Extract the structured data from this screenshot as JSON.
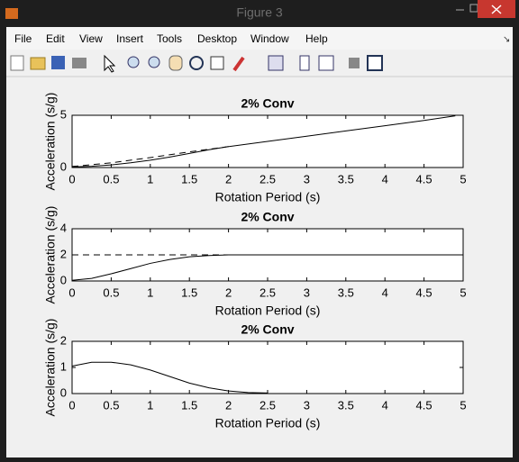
{
  "window": {
    "title": "Figure 3",
    "menu": [
      "File",
      "Edit",
      "View",
      "Insert",
      "Tools",
      "Desktop",
      "Window",
      "Help"
    ]
  },
  "chart_data": [
    {
      "type": "line",
      "title": "2% Conv",
      "xlabel": "Rotation Period (s)",
      "ylabel": "Acceleration (s/g)",
      "xlim": [
        0,
        5
      ],
      "ylim": [
        0,
        5
      ],
      "xticks": [
        0,
        0.5,
        1,
        1.5,
        2,
        2.5,
        3,
        3.5,
        4,
        4.5,
        5
      ],
      "yticks": [
        0,
        5
      ],
      "series": [
        {
          "color": "#000000",
          "style": "solid",
          "x": [
            0,
            0.25,
            0.5,
            0.75,
            1,
            1.25,
            1.5,
            1.75,
            2,
            2.5,
            3,
            3.5,
            4,
            4.5,
            4.9
          ],
          "values": [
            0.05,
            0.12,
            0.25,
            0.45,
            0.7,
            1.0,
            1.35,
            1.7,
            2.0,
            2.5,
            3.0,
            3.5,
            4.0,
            4.5,
            4.95
          ]
        },
        {
          "color": "#000000",
          "style": "dashed",
          "x": [
            0,
            0.5,
            1,
            1.5,
            2
          ],
          "values": [
            0.1,
            0.45,
            0.95,
            1.5,
            2.0
          ]
        }
      ]
    },
    {
      "type": "line",
      "title": "2% Conv",
      "xlabel": "Rotation Period (s)",
      "ylabel": "Acceleration (s/g)",
      "xlim": [
        0,
        5
      ],
      "ylim": [
        0,
        4
      ],
      "xticks": [
        0,
        0.5,
        1,
        1.5,
        2,
        2.5,
        3,
        3.5,
        4,
        4.5,
        5
      ],
      "yticks": [
        0,
        2,
        4
      ],
      "series": [
        {
          "color": "#000000",
          "style": "solid",
          "x": [
            0,
            0.25,
            0.5,
            0.75,
            1,
            1.25,
            1.5,
            1.75,
            2,
            2.5,
            3,
            3.5,
            4,
            4.5,
            5
          ],
          "values": [
            0.05,
            0.2,
            0.55,
            0.95,
            1.35,
            1.65,
            1.85,
            1.95,
            2,
            2,
            2,
            2,
            2,
            2,
            2
          ]
        },
        {
          "color": "#000000",
          "style": "dashed",
          "x": [
            0,
            2
          ],
          "values": [
            2,
            2
          ]
        }
      ]
    },
    {
      "type": "line",
      "title": "2% Conv",
      "xlabel": "Rotation Period (s)",
      "ylabel": "Acceleration (s/g)",
      "xlim": [
        0,
        5
      ],
      "ylim": [
        0,
        2
      ],
      "xticks": [
        0,
        0.5,
        1,
        1.5,
        2,
        2.5,
        3,
        3.5,
        4,
        4.5,
        5
      ],
      "yticks": [
        0,
        1,
        2
      ],
      "series": [
        {
          "color": "#000000",
          "style": "solid",
          "x": [
            0,
            0.25,
            0.5,
            0.75,
            1,
            1.25,
            1.5,
            1.75,
            2,
            2.25,
            2.5
          ],
          "values": [
            1.05,
            1.2,
            1.2,
            1.1,
            0.9,
            0.65,
            0.4,
            0.22,
            0.1,
            0.04,
            0.02
          ]
        }
      ]
    }
  ]
}
